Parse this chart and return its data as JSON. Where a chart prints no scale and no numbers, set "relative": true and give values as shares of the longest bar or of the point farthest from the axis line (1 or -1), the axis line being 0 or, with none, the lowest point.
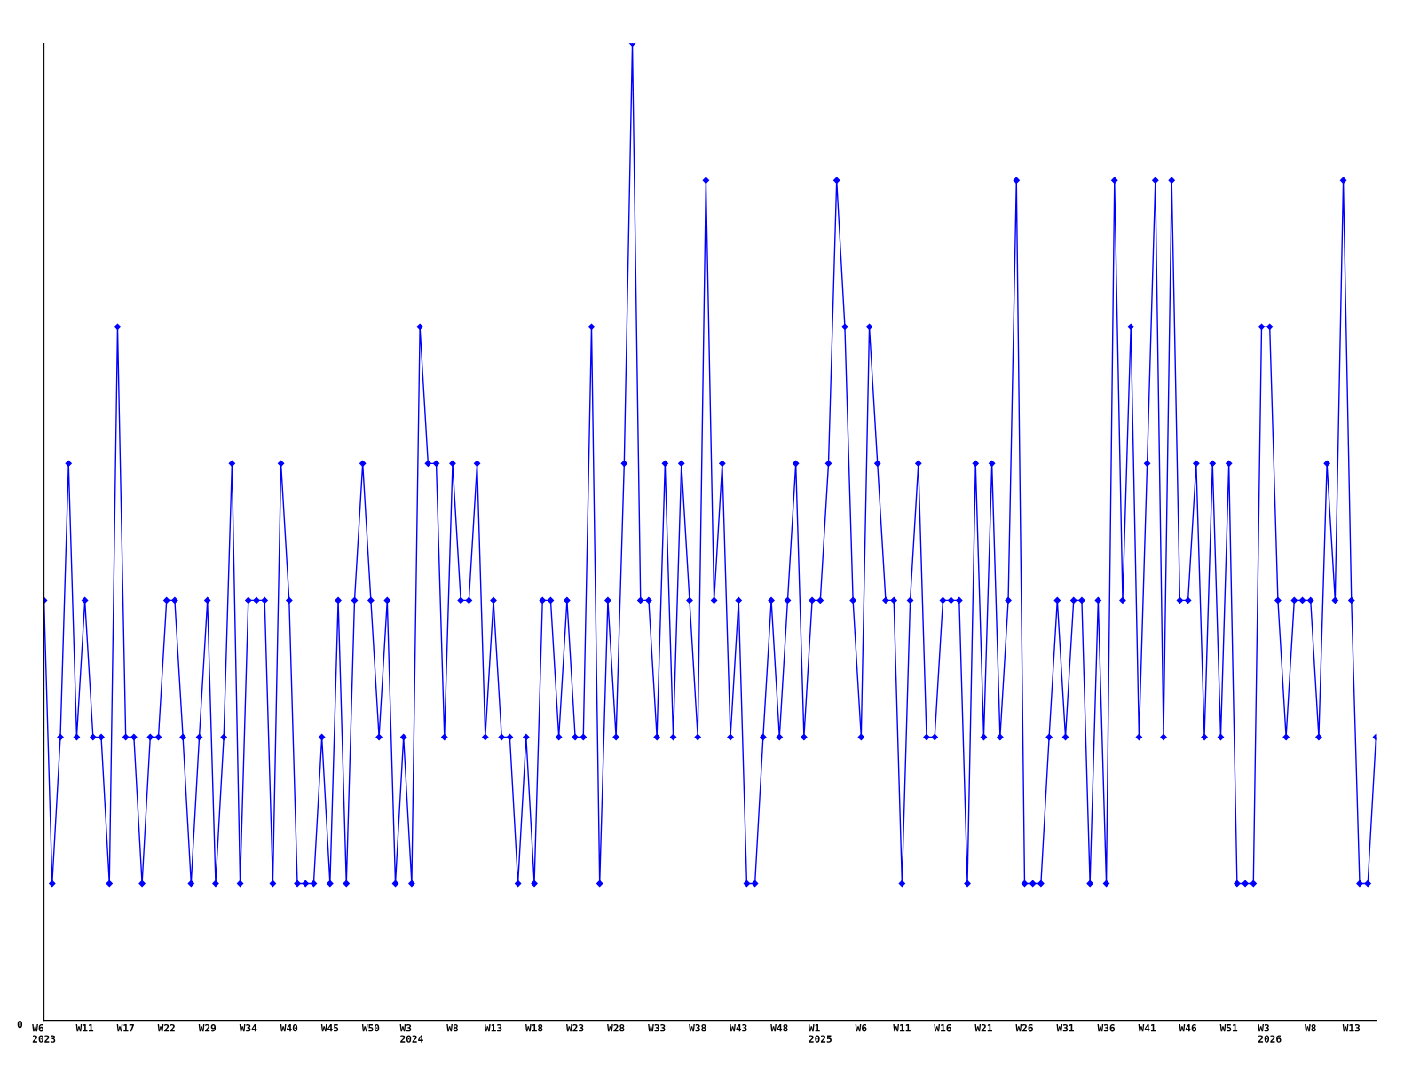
{
  "chart_data": {
    "type": "line",
    "relative": true,
    "annotations": [
      "0"
    ],
    "marker": "diamond",
    "line_style": "solid",
    "grid": false,
    "categories": [
      "W6\n2023",
      null,
      null,
      null,
      null,
      "W11",
      null,
      null,
      null,
      null,
      "W17",
      null,
      null,
      null,
      null,
      "W22",
      null,
      null,
      null,
      null,
      "W29",
      null,
      null,
      null,
      null,
      "W34",
      null,
      null,
      null,
      null,
      "W40",
      null,
      null,
      null,
      null,
      "W45",
      null,
      null,
      null,
      null,
      "W50",
      null,
      null,
      null,
      null,
      "W3\n2024",
      null,
      null,
      null,
      null,
      "W8",
      null,
      null,
      null,
      null,
      "W13",
      null,
      null,
      null,
      null,
      "W18",
      null,
      null,
      null,
      null,
      "W23",
      null,
      null,
      null,
      null,
      "W28",
      null,
      null,
      null,
      null,
      "W33",
      null,
      null,
      null,
      null,
      "W38",
      null,
      null,
      null,
      null,
      "W43",
      null,
      null,
      null,
      null,
      "W48",
      null,
      null,
      null,
      null,
      "W1\n2025",
      null,
      null,
      null,
      null,
      "W6",
      null,
      null,
      null,
      null,
      "W11",
      null,
      null,
      null,
      null,
      "W16",
      null,
      null,
      null,
      null,
      "W21",
      null,
      null,
      null,
      null,
      "W26",
      null,
      null,
      null,
      null,
      "W31",
      null,
      null,
      null,
      null,
      "W36",
      null,
      null,
      null,
      null,
      "W41",
      null,
      null,
      null,
      null,
      "W46",
      null,
      null,
      null,
      null,
      "W51",
      null,
      null,
      null,
      null,
      "W3\n2026",
      null,
      null,
      null,
      null,
      "W8",
      null,
      null,
      null,
      null,
      "W13",
      null,
      null,
      null
    ],
    "series": [
      {
        "color": "#0000ff",
        "values": [
          0.43,
          0.14,
          0.29,
          0.57,
          0.29,
          0.43,
          0.29,
          0.29,
          0.14,
          0.71,
          0.29,
          0.29,
          0.14,
          0.29,
          0.29,
          0.43,
          0.43,
          0.29,
          0.14,
          0.29,
          0.43,
          0.14,
          0.29,
          0.57,
          0.14,
          0.43,
          0.43,
          0.43,
          0.14,
          0.57,
          0.43,
          0.14,
          0.14,
          0.14,
          0.29,
          0.14,
          0.43,
          0.14,
          0.43,
          0.57,
          0.43,
          0.29,
          0.43,
          0.14,
          0.29,
          0.14,
          0.71,
          0.57,
          0.57,
          0.29,
          0.57,
          0.43,
          0.43,
          0.57,
          0.29,
          0.43,
          0.29,
          0.29,
          0.14,
          0.29,
          0.14,
          0.43,
          0.43,
          0.29,
          0.43,
          0.29,
          0.29,
          0.71,
          0.14,
          0.43,
          0.29,
          0.57,
          1,
          0.43,
          0.43,
          0.29,
          0.57,
          0.29,
          0.57,
          0.43,
          0.29,
          0.86,
          0.43,
          0.57,
          0.29,
          0.43,
          0.14,
          0.14,
          0.29,
          0.43,
          0.29,
          0.43,
          0.57,
          0.29,
          0.43,
          0.43,
          0.57,
          0.86,
          0.71,
          0.43,
          0.29,
          0.71,
          0.57,
          0.43,
          0.43,
          0.14,
          0.43,
          0.57,
          0.29,
          0.29,
          0.43,
          0.43,
          0.43,
          0.14,
          0.57,
          0.29,
          0.57,
          0.29,
          0.43,
          0.86,
          0.14,
          0.14,
          0.14,
          0.29,
          0.43,
          0.29,
          0.43,
          0.43,
          0.14,
          0.43,
          0.14,
          0.86,
          0.43,
          0.71,
          0.29,
          0.57,
          0.86,
          0.29,
          0.86,
          0.43,
          0.43,
          0.57,
          0.29,
          0.57,
          0.29,
          0.57,
          0.14,
          0.14,
          0.14,
          0.71,
          0.71,
          0.43,
          0.29,
          0.43,
          0.43,
          0.43,
          0.29,
          0.57,
          0.43,
          0.86,
          0.43,
          0.14,
          0.14,
          0.29
        ]
      }
    ]
  }
}
